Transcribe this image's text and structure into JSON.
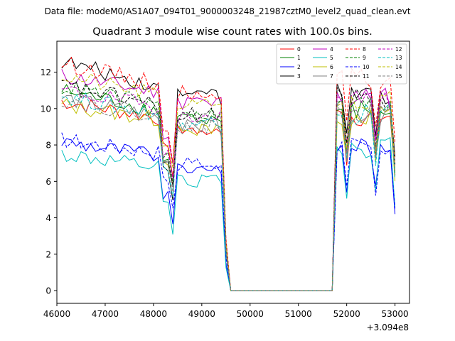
{
  "chart_data": {
    "type": "line",
    "file_label": "Data file: modeM0/AS1A07_094T01_9000003248_21987cztM0_level2_quad_clean.evt",
    "title": "Quadrant 3 module wise count rates with 100.0s bins.",
    "xlabel": "",
    "ylabel": "",
    "x_offset_label": "+3.094e8",
    "xlim": [
      46000,
      53300
    ],
    "ylim": [
      -0.7,
      13.7
    ],
    "x_ticks": [
      46000,
      47000,
      48000,
      49000,
      50000,
      51000,
      52000,
      53000
    ],
    "x_tick_labels": [
      "46000",
      "47000",
      "48000",
      "49000",
      "50000",
      "51000",
      "52000",
      "53000"
    ],
    "y_ticks": [
      0,
      2,
      4,
      6,
      8,
      10,
      12
    ],
    "y_tick_labels": [
      "0",
      "2",
      "4",
      "6",
      "8",
      "10",
      "12"
    ],
    "grid": false,
    "legend_position": "top-right",
    "colors": {
      "red": "#ff0000",
      "green": "#008000",
      "blue": "#0000ff",
      "black": "#000000",
      "magenta": "#bf00bf",
      "cyan": "#00bfbf",
      "olive": "#bfbf00",
      "gray": "#808080"
    },
    "segments": [
      {
        "x_start": 46100,
        "x_end": 49600,
        "n": 36
      },
      {
        "x_start": 49600,
        "x_end": 51700,
        "n": 22
      },
      {
        "x_start": 51700,
        "x_end": 53000,
        "n": 14
      }
    ],
    "series": [
      {
        "name": "0",
        "color": "#ff0000",
        "dash": false,
        "base1": 10.4,
        "slope": -0.45,
        "dip": 6.4,
        "base3": 9.6
      },
      {
        "name": "1",
        "color": "#008000",
        "dash": false,
        "base1": 11.0,
        "slope": -0.55,
        "dip": 5.6,
        "base3": 9.9
      },
      {
        "name": "2",
        "color": "#0000ff",
        "dash": false,
        "base1": 8.2,
        "slope": -0.4,
        "dip": 3.7,
        "base3": 8.0
      },
      {
        "name": "3",
        "color": "#000000",
        "dash": false,
        "base1": 12.6,
        "slope": -0.7,
        "dip": 5.2,
        "base3": 10.8
      },
      {
        "name": "4",
        "color": "#bf00bf",
        "dash": false,
        "base1": 11.8,
        "slope": -0.45,
        "dip": 6.9,
        "base3": 10.6
      },
      {
        "name": "5",
        "color": "#00bfbf",
        "dash": false,
        "base1": 7.5,
        "slope": -0.4,
        "dip": 3.2,
        "base3": 7.9
      },
      {
        "name": "6",
        "color": "#bfbf00",
        "dash": false,
        "base1": 10.2,
        "slope": -0.4,
        "dip": 5.6,
        "base3": 9.6
      },
      {
        "name": "7",
        "color": "#808080",
        "dash": false,
        "base1": 10.6,
        "slope": -0.5,
        "dip": 5.7,
        "base3": 9.8
      },
      {
        "name": "8",
        "color": "#ff0000",
        "dash": true,
        "base1": 12.5,
        "slope": -0.55,
        "dip": 7.2,
        "base3": 11.6
      },
      {
        "name": "9",
        "color": "#008000",
        "dash": true,
        "base1": 11.2,
        "slope": -0.5,
        "dip": 5.9,
        "base3": 10.2
      },
      {
        "name": "10",
        "color": "#0000ff",
        "dash": true,
        "base1": 8.3,
        "slope": -0.35,
        "dip": 4.6,
        "base3": 7.9
      },
      {
        "name": "11",
        "color": "#000000",
        "dash": true,
        "base1": 11.3,
        "slope": -0.55,
        "dip": 5.6,
        "base3": 10.6
      },
      {
        "name": "12",
        "color": "#bf00bf",
        "dash": true,
        "base1": 11.0,
        "slope": -0.45,
        "dip": 6.1,
        "base3": 10.4
      },
      {
        "name": "13",
        "color": "#00bfbf",
        "dash": true,
        "base1": 10.7,
        "slope": -0.5,
        "dip": 5.3,
        "base3": 9.7
      },
      {
        "name": "14",
        "color": "#bfbf00",
        "dash": true,
        "base1": 11.8,
        "slope": -0.55,
        "dip": 6.6,
        "base3": 10.5
      },
      {
        "name": "15",
        "color": "#808080",
        "dash": true,
        "base1": 10.5,
        "slope": -0.45,
        "dip": 5.5,
        "base3": 9.8
      }
    ]
  }
}
